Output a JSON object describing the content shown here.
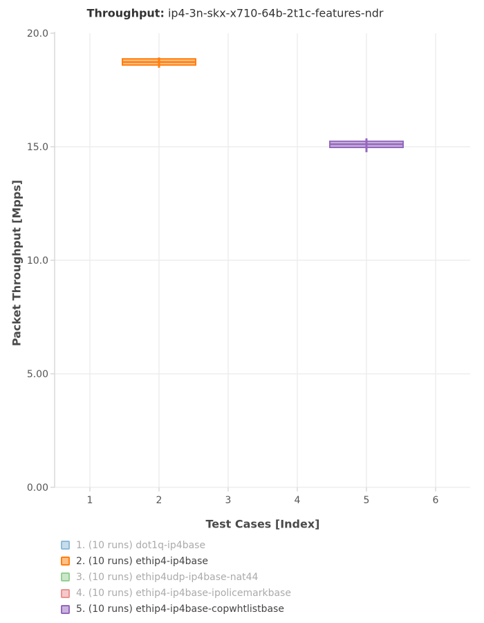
{
  "chart_data": {
    "type": "box",
    "title": "Throughput: ip4-3n-skx-x710-64b-2t1c-features-ndr",
    "title_prefix": "Throughput:",
    "title_rest": "ip4-3n-skx-x710-64b-2t1c-features-ndr",
    "xlabel": "Test Cases [Index]",
    "ylabel": "Packet Throughput [Mpps]",
    "xlim": [
      0.5,
      6.5
    ],
    "ylim": [
      0,
      20
    ],
    "xticks": [
      1,
      2,
      3,
      4,
      5,
      6
    ],
    "xtick_labels": [
      "1",
      "2",
      "3",
      "4",
      "5",
      "6"
    ],
    "yticks": [
      0,
      5,
      10,
      15,
      20
    ],
    "ytick_labels": [
      "0.00",
      "5.00",
      "10.0",
      "15.0",
      "20.0"
    ],
    "grid": true,
    "legend_position": "bottom-left",
    "colors": {
      "grid": "#ededed",
      "axis_line": "#d6d6d6",
      "tick_label": "#555555",
      "legend_text_active": "#444444",
      "legend_text_dimmed": "#aaaaaa"
    },
    "series": [
      {
        "index": 1,
        "label": "1. (10 runs) dot1q-ip4base",
        "color": "#1f77b4",
        "visible": false,
        "x": 1,
        "box": null
      },
      {
        "index": 2,
        "label": "2. (10 runs) ethip4-ip4base",
        "color": "#ff7f0e",
        "visible": true,
        "x": 2,
        "box": {
          "lower_whisker": 18.48,
          "q1": 18.6,
          "median": 18.73,
          "q3": 18.87,
          "upper_whisker": 18.93
        }
      },
      {
        "index": 3,
        "label": "3. (10 runs) ethip4udp-ip4base-nat44",
        "color": "#2ca02c",
        "visible": false,
        "x": 3,
        "box": null
      },
      {
        "index": 4,
        "label": "4. (10 runs) ethip4-ip4base-ipolicemarkbase",
        "color": "#d62728",
        "visible": false,
        "x": 4,
        "box": null
      },
      {
        "index": 5,
        "label": "5. (10 runs) ethip4-ip4base-copwhtlistbase",
        "color": "#9467bd",
        "visible": true,
        "x": 5,
        "box": {
          "lower_whisker": 14.76,
          "q1": 14.97,
          "median": 15.11,
          "q3": 15.24,
          "upper_whisker": 15.37
        }
      }
    ]
  }
}
